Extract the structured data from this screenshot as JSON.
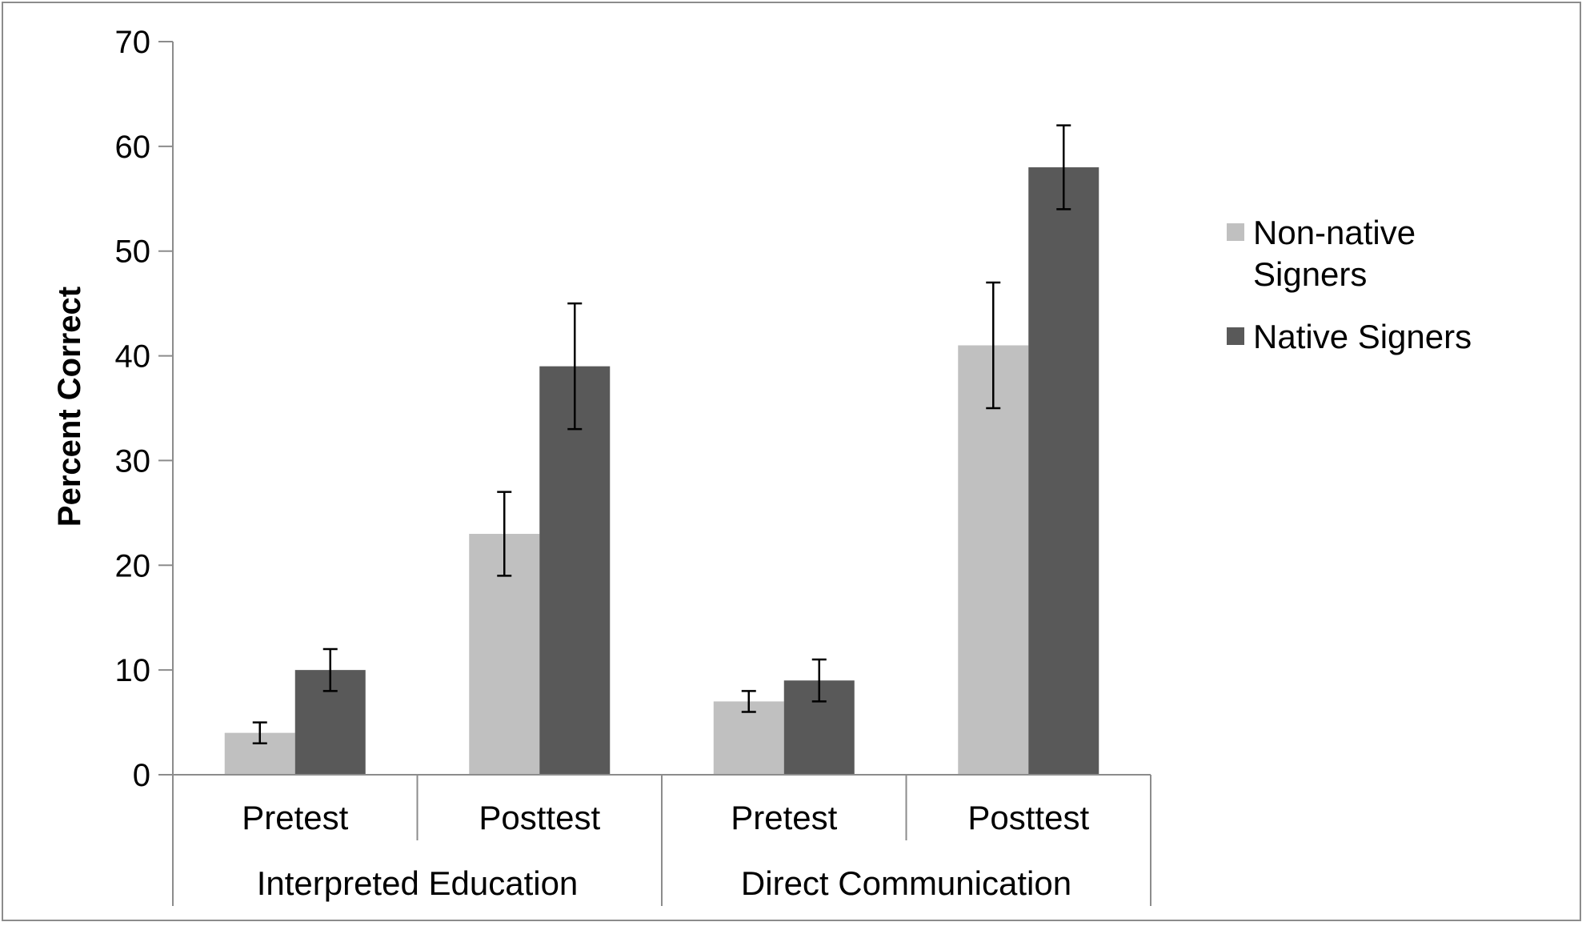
{
  "chart_data": {
    "type": "bar",
    "title": "",
    "xlabel": "",
    "ylabel": "Percent Correct",
    "ylim": [
      0,
      70
    ],
    "yticks": [
      0,
      10,
      20,
      30,
      40,
      50,
      60,
      70
    ],
    "grid": false,
    "legend_position": "right",
    "categories": [
      "Pretest",
      "Posttest",
      "Pretest",
      "Posttest"
    ],
    "category_groups": [
      {
        "label": "Interpreted Education",
        "categories": [
          "Pretest",
          "Posttest"
        ]
      },
      {
        "label": "Direct Communication",
        "categories": [
          "Pretest",
          "Posttest"
        ]
      }
    ],
    "series": [
      {
        "name": "Non-native Signers",
        "legend_lines": [
          "Non-native",
          "Signers"
        ],
        "color": "#c0c0c0",
        "values": [
          4,
          23,
          7,
          41
        ],
        "error_low": [
          3,
          19,
          6,
          35
        ],
        "error_high": [
          5,
          27,
          8,
          47
        ]
      },
      {
        "name": "Native Signers",
        "legend_lines": [
          "Native Signers"
        ],
        "color": "#595959",
        "values": [
          10,
          39,
          9,
          58
        ],
        "error_low": [
          8,
          33,
          7,
          54
        ],
        "error_high": [
          12,
          45,
          11,
          62
        ]
      }
    ]
  }
}
